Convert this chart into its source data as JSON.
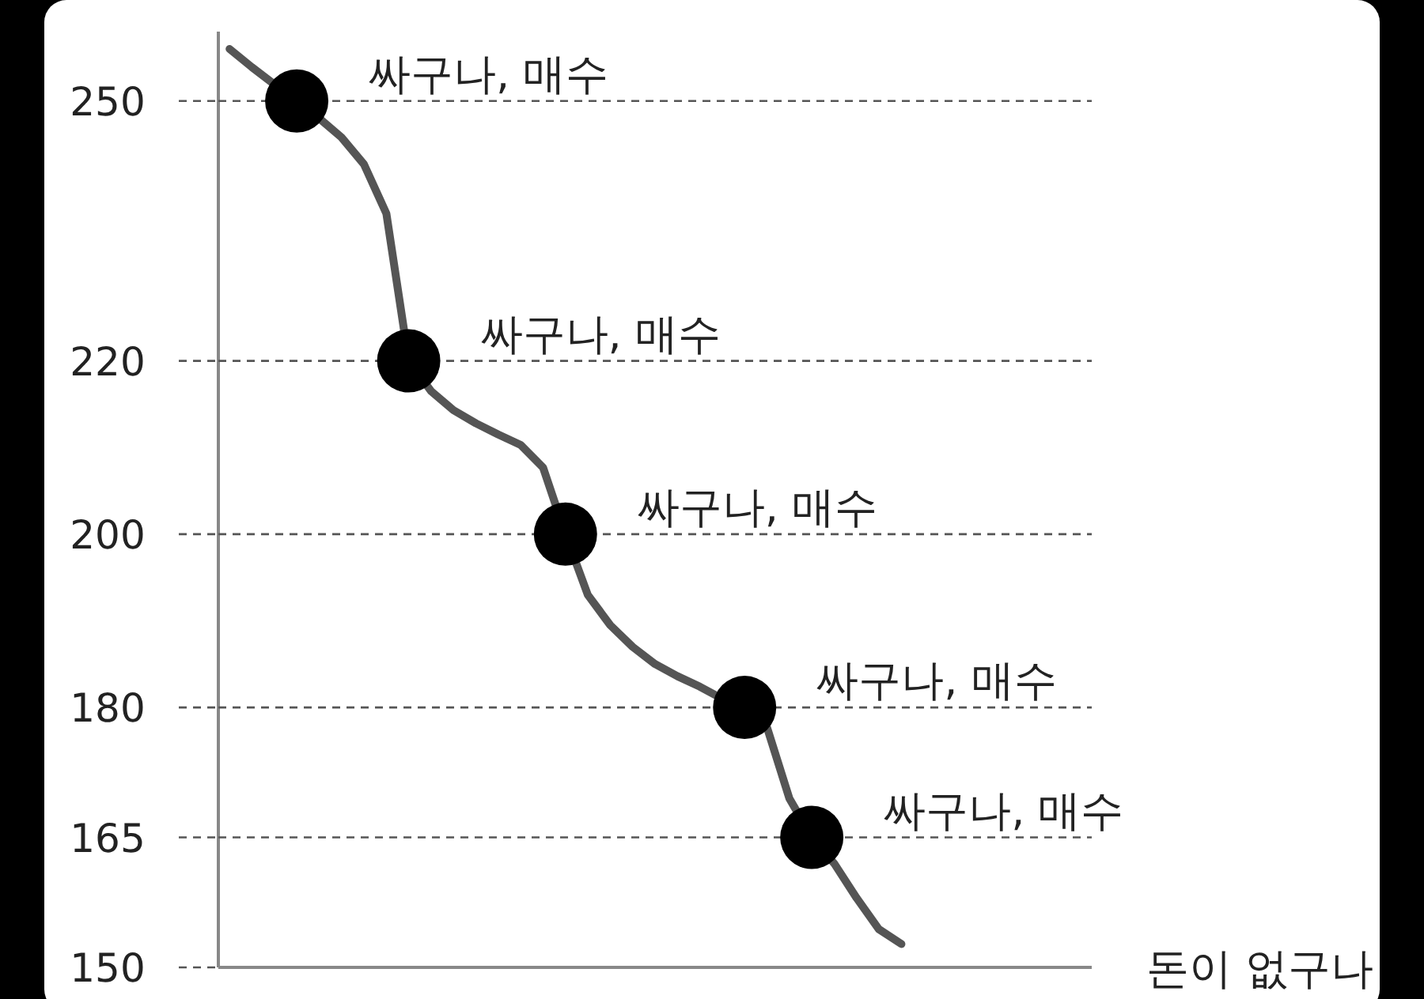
{
  "chart_data": {
    "type": "line",
    "xlabel": "돈이 없구나",
    "ylim": [
      150,
      258
    ],
    "yticks": [
      150,
      165,
      180,
      200,
      220,
      250
    ],
    "tick_labels": "y",
    "categories": [
      null,
      null,
      null,
      null,
      null,
      null,
      null,
      null,
      null,
      null,
      null,
      null,
      null,
      null,
      null,
      null,
      null,
      null,
      null,
      null,
      null,
      null,
      null,
      null,
      null,
      null,
      null,
      null,
      null,
      null,
      null,
      null,
      null,
      null,
      null,
      null,
      null,
      null,
      null
    ],
    "series": [
      {
        "color": "#555555",
        "values": [
          256,
          253.9,
          251.9,
          250,
          248,
          245.8,
          242.7,
          237,
          220,
          216.5,
          214.3,
          212.8,
          211.5,
          210.3,
          207.7,
          200,
          193,
          189.5,
          187,
          185,
          183.6,
          182.4,
          181,
          180,
          177.7,
          169.5,
          165,
          162,
          158,
          154.4,
          152.7,
          null,
          null,
          null,
          null,
          null,
          null,
          null,
          null
        ]
      },
      {
        "type": "scatter",
        "color": "#000000",
        "marker": "circle",
        "values": [
          null,
          null,
          null,
          250,
          null,
          null,
          null,
          null,
          220,
          null,
          null,
          null,
          null,
          null,
          null,
          200,
          null,
          null,
          null,
          null,
          null,
          null,
          null,
          180,
          null,
          null,
          165,
          null,
          null,
          null,
          null,
          null,
          null,
          null,
          null,
          null,
          null,
          null,
          null
        ]
      }
    ],
    "ref_lines": [
      {
        "axis": "y",
        "value": 250,
        "line_style": "dashed"
      },
      {
        "axis": "y",
        "value": 220,
        "line_style": "dashed"
      },
      {
        "axis": "y",
        "value": 200,
        "line_style": "dashed"
      },
      {
        "axis": "y",
        "value": 180,
        "line_style": "dashed"
      },
      {
        "axis": "y",
        "value": 165,
        "line_style": "dashed"
      }
    ],
    "annotations": [
      "싸구나, 매수",
      "싸구나, 매수",
      "싸구나, 매수",
      "싸구나, 매수",
      "싸구나, 매수"
    ]
  }
}
